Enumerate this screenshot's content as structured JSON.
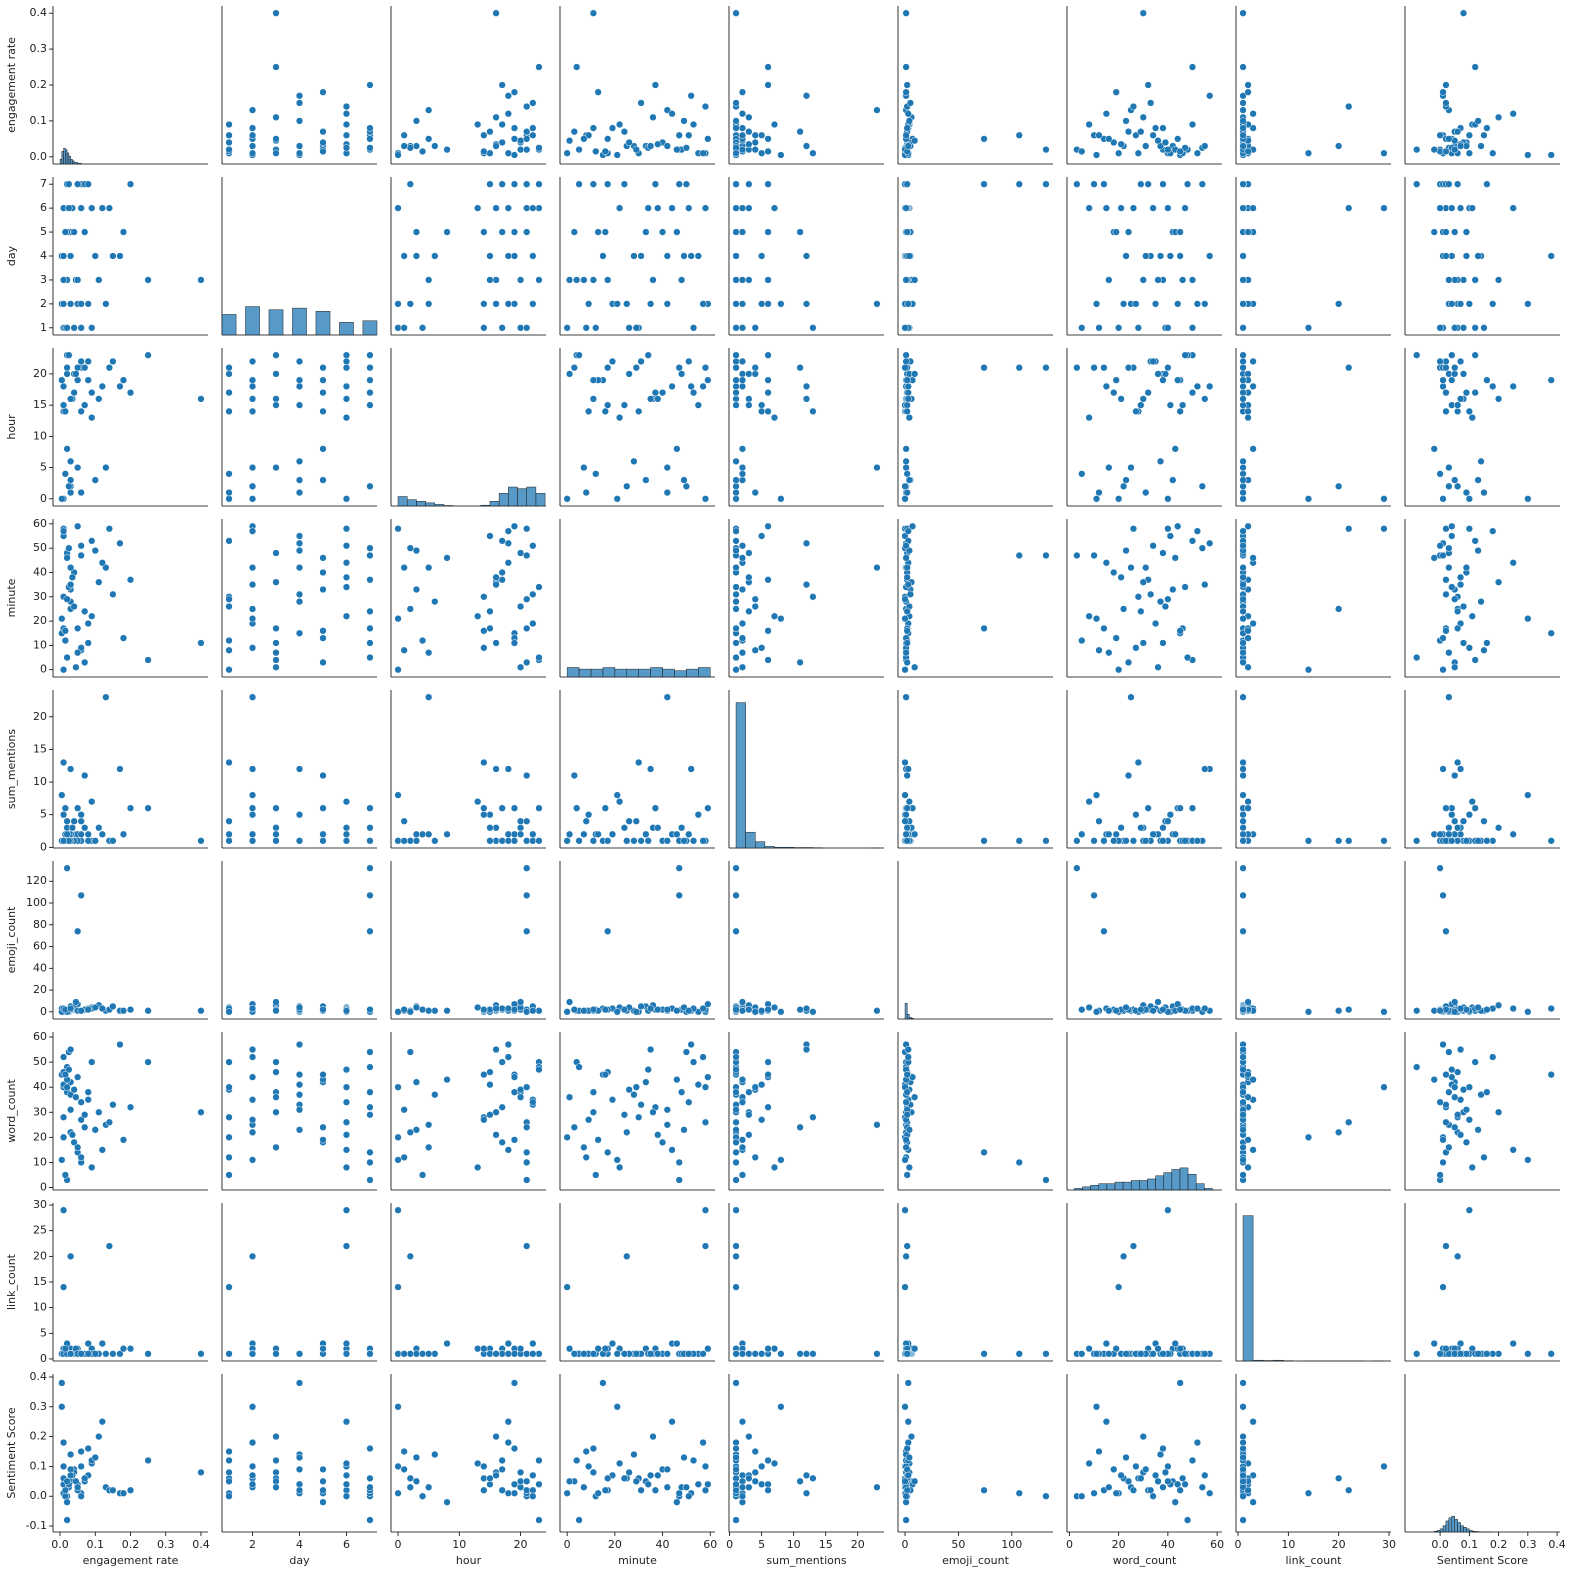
{
  "chart_data": {
    "type": "pairplot",
    "color": "#1f77b4",
    "hist_ylim": [
      0,
      100
    ],
    "variables": [
      {
        "name": "engagement rate",
        "lim": [
          -0.02,
          0.42
        ],
        "xticks": [
          {
            "value": 0,
            "label": "0.0"
          },
          0.1,
          0.2,
          0.3,
          0.4
        ],
        "yticks": [
          {
            "value": 0,
            "label": "0.0"
          },
          0.1,
          0.2,
          0.3,
          0.4
        ],
        "hist": {
          "bins": [
            0,
            0.005,
            0.01,
            0.015,
            0.02,
            0.025,
            0.03,
            0.035,
            0.04,
            0.05,
            0.06
          ],
          "counts": [
            3,
            8,
            10,
            9,
            7,
            5,
            3,
            2,
            1,
            0.5
          ]
        }
      },
      {
        "name": "day",
        "lim": [
          0.7,
          7.3
        ],
        "xticks": [
          2,
          4,
          6
        ],
        "yticks": [
          1,
          2,
          3,
          4,
          5,
          6,
          7
        ],
        "hist": {
          "bins": [
            0.7,
            1.3,
            1.7,
            2.3,
            2.7,
            3.3,
            3.7,
            4.3,
            4.7,
            5.3,
            5.7,
            6.3,
            6.7,
            7.3
          ],
          "counts": [
            13,
            0,
            18,
            0,
            16,
            0,
            17,
            0,
            15,
            0,
            8,
            0,
            9
          ]
        }
      },
      {
        "name": "hour",
        "lim": [
          -1.15,
          24.15
        ],
        "xticks": [
          0,
          10,
          20
        ],
        "yticks": [
          0,
          5,
          10,
          15,
          20
        ],
        "hist": {
          "bins": [
            0,
            1.5,
            3,
            4.5,
            6,
            7.5,
            9,
            10.5,
            12,
            13.5,
            15,
            16.5,
            18,
            19.5,
            21,
            22.5,
            24
          ],
          "counts": [
            6,
            4,
            3,
            2,
            1,
            0.3,
            0,
            0,
            0,
            0.5,
            3,
            8,
            12,
            11,
            12,
            8
          ]
        }
      },
      {
        "name": "minute",
        "lim": [
          -3,
          62
        ],
        "xticks": [
          0,
          20,
          40,
          60
        ],
        "yticks": [
          0,
          10,
          20,
          30,
          40,
          50,
          60
        ],
        "hist": {
          "bins": [
            0,
            5,
            10,
            15,
            20,
            25,
            30,
            35,
            40,
            45,
            50,
            55,
            60
          ],
          "counts": [
            6,
            5,
            5,
            6,
            5,
            5,
            5,
            6,
            5,
            4,
            5,
            6
          ]
        }
      },
      {
        "name": "sum_mentions",
        "lim": [
          -0.1,
          24.1
        ],
        "xticks": [
          0,
          5,
          10,
          15,
          20
        ],
        "yticks": [
          0,
          5,
          10,
          15,
          20
        ],
        "hist": {
          "bins": [
            1,
            2.5,
            4,
            5.5,
            7,
            8.5,
            10,
            11.5,
            13,
            14.5,
            16,
            17.5,
            19,
            20.5,
            22,
            23.5
          ],
          "counts": [
            92,
            10,
            4,
            1,
            0.5,
            0.5,
            0.3,
            0.3,
            0.2,
            0,
            0,
            0,
            0,
            0,
            0.1
          ]
        }
      },
      {
        "name": "emoji_count",
        "lim": [
          -6.6,
          138.6
        ],
        "xticks": [
          0,
          50,
          100
        ],
        "yticks": [
          0,
          20,
          40,
          60,
          80,
          100,
          120
        ],
        "hist": {
          "bins": [
            0,
            2,
            4,
            6,
            8
          ],
          "counts": [
            10,
            3,
            1,
            0.5
          ]
        }
      },
      {
        "name": "word_count",
        "lim": [
          -1,
          62
        ],
        "xticks": [
          0,
          20,
          40,
          60
        ],
        "yticks": [
          0,
          10,
          20,
          30,
          40,
          50,
          60
        ],
        "hist": {
          "bins": [
            2,
            5.3,
            8.6,
            11.9,
            15.2,
            18.5,
            21.8,
            25.1,
            28.4,
            31.7,
            35,
            38.3,
            41.6,
            44.9,
            48.2,
            51.5,
            54.8,
            58.1
          ],
          "counts": [
            1,
            2,
            3,
            4,
            4,
            5,
            5,
            6,
            6,
            7,
            9,
            11,
            13,
            14,
            10,
            4,
            1
          ]
        }
      },
      {
        "name": "link_count",
        "lim": [
          -0.4,
          30.4
        ],
        "xticks": [
          0,
          10,
          20,
          30
        ],
        "yticks": [
          0,
          5,
          10,
          15,
          20,
          25,
          30
        ],
        "hist": {
          "bins": [
            1,
            3,
            5,
            7,
            9,
            11,
            13,
            15,
            17,
            19,
            21,
            23,
            25,
            27,
            29
          ],
          "counts": [
            92,
            0.5,
            0.3,
            0.5,
            0.2,
            0,
            0.1,
            0.1,
            0.1,
            0.1,
            0.1,
            0.1,
            0,
            0.1
          ]
        }
      },
      {
        "name": "Sentiment Score",
        "lim": [
          -0.12,
          0.41
        ],
        "xticks": [
          {
            "value": 0,
            "label": "0.0"
          },
          0.1,
          0.2,
          0.3,
          0.4
        ],
        "yticks": [
          -0.1,
          {
            "value": 0,
            "label": "0.0"
          },
          0.1,
          0.2,
          0.3,
          0.4
        ],
        "hist": {
          "bins": [
            -0.02,
            -0.01,
            0,
            0.01,
            0.02,
            0.03,
            0.04,
            0.05,
            0.06,
            0.07,
            0.08,
            0.09,
            0.1,
            0.11,
            0.12,
            0.13,
            0.14,
            0.15,
            0.16,
            0.17,
            0.18
          ],
          "counts": [
            0.5,
            1,
            2,
            4,
            7,
            9,
            10,
            8,
            6,
            4,
            3,
            2,
            1,
            0.5,
            0.3,
            0.2,
            0.1,
            0.1,
            0.1,
            0.1
          ]
        }
      }
    ],
    "records": [
      [
        0.4,
        3,
        16,
        11,
        1,
        1,
        30,
        1,
        0.08
      ],
      [
        0.02,
        7,
        21,
        47,
        1,
        132,
        3,
        1,
        0.0
      ],
      [
        0.06,
        7,
        21,
        47,
        1,
        107,
        10,
        1,
        0.01
      ],
      [
        0.05,
        7,
        21,
        17,
        1,
        74,
        14,
        1,
        0.02
      ],
      [
        0.13,
        2,
        5,
        42,
        23,
        1,
        25,
        1,
        0.03
      ],
      [
        0.01,
        6,
        0,
        58,
        1,
        0,
        40,
        29,
        0.1
      ],
      [
        0.14,
        6,
        21,
        58,
        1,
        2,
        26,
        22,
        0.02
      ],
      [
        0.25,
        3,
        23,
        4,
        6,
        1,
        50,
        1,
        0.12
      ],
      [
        0.2,
        7,
        17,
        37,
        6,
        2,
        32,
        2,
        0.02
      ],
      [
        0.03,
        2,
        2,
        25,
        1,
        1,
        22,
        20,
        0.06
      ],
      [
        0.01,
        1,
        0,
        0,
        1,
        0,
        20,
        14,
        0.01
      ],
      [
        0.005,
        4,
        19,
        15,
        1,
        3,
        45,
        1,
        0.38
      ],
      [
        0.01,
        1,
        14,
        30,
        13,
        0,
        28,
        1,
        0.06
      ],
      [
        0.17,
        4,
        18,
        52,
        12,
        1,
        57,
        1,
        0.01
      ],
      [
        0.03,
        5,
        3,
        33,
        2,
        5,
        42,
        2,
        0.05
      ],
      [
        0.02,
        3,
        20,
        48,
        3,
        2,
        38,
        1,
        0.03
      ],
      [
        0.06,
        1,
        1,
        8,
        4,
        1,
        12,
        1,
        0.15
      ],
      [
        0.08,
        2,
        22,
        19,
        2,
        3,
        35,
        3,
        0.07
      ],
      [
        0.01,
        4,
        15,
        55,
        5,
        0,
        41,
        1,
        0.04
      ],
      [
        0.04,
        5,
        17,
        40,
        1,
        2,
        18,
        1,
        0.09
      ],
      [
        0.09,
        6,
        13,
        22,
        7,
        4,
        8,
        2,
        0.11
      ],
      [
        0.02,
        7,
        23,
        5,
        1,
        1,
        48,
        1,
        -0.08
      ],
      [
        0.11,
        3,
        16,
        36,
        3,
        6,
        30,
        1,
        0.2
      ],
      [
        0.015,
        1,
        4,
        12,
        2,
        2,
        5,
        1,
        0.0
      ],
      [
        0.05,
        2,
        19,
        59,
        6,
        7,
        44,
        2,
        0.04
      ],
      [
        0.03,
        4,
        6,
        28,
        1,
        1,
        37,
        1,
        0.14
      ],
      [
        0.07,
        5,
        21,
        3,
        11,
        2,
        24,
        1,
        0.05
      ],
      [
        0.12,
        6,
        18,
        44,
        2,
        3,
        15,
        3,
        0.25
      ],
      [
        0.025,
        7,
        2,
        50,
        1,
        0,
        54,
        1,
        0.03
      ],
      [
        0.04,
        1,
        20,
        26,
        4,
        4,
        39,
        1,
        0.08
      ],
      [
        0.01,
        3,
        15,
        17,
        1,
        2,
        46,
        2,
        0.06
      ],
      [
        0.06,
        2,
        14,
        9,
        5,
        1,
        27,
        1,
        0.1
      ],
      [
        0.15,
        4,
        22,
        31,
        1,
        5,
        33,
        1,
        0.02
      ],
      [
        0.02,
        5,
        8,
        46,
        2,
        1,
        43,
        3,
        -0.02
      ],
      [
        0.035,
        6,
        16,
        38,
        3,
        2,
        21,
        1,
        0.07
      ],
      [
        0.09,
        1,
        17,
        53,
        1,
        3,
        50,
        1,
        0.12
      ],
      [
        0.005,
        2,
        0,
        21,
        8,
        0,
        11,
        1,
        0.3
      ],
      [
        0.045,
        3,
        20,
        1,
        2,
        9,
        36,
        2,
        0.05
      ],
      [
        0.03,
        4,
        1,
        42,
        1,
        2,
        31,
        1,
        0.09
      ],
      [
        0.18,
        5,
        19,
        13,
        2,
        1,
        19,
        2,
        0.01
      ],
      [
        0.025,
        6,
        23,
        34,
        1,
        1,
        47,
        1,
        0.04
      ],
      [
        0.07,
        7,
        15,
        24,
        3,
        2,
        29,
        1,
        0.06
      ],
      [
        0.01,
        2,
        18,
        57,
        1,
        3,
        52,
        1,
        0.18
      ],
      [
        0.05,
        3,
        5,
        7,
        2,
        1,
        16,
        1,
        0.03
      ],
      [
        0.02,
        1,
        21,
        29,
        4,
        0,
        40,
        1,
        0.05
      ],
      [
        0.1,
        4,
        3,
        49,
        1,
        4,
        23,
        1,
        0.13
      ],
      [
        0.015,
        5,
        14,
        16,
        6,
        2,
        45,
        2,
        0.02
      ],
      [
        0.06,
        6,
        22,
        51,
        2,
        1,
        34,
        1,
        0.0
      ],
      [
        0.03,
        2,
        16,
        35,
        12,
        3,
        55,
        1,
        0.07
      ],
      [
        0.08,
        7,
        19,
        11,
        1,
        2,
        38,
        1,
        0.16
      ]
    ]
  }
}
